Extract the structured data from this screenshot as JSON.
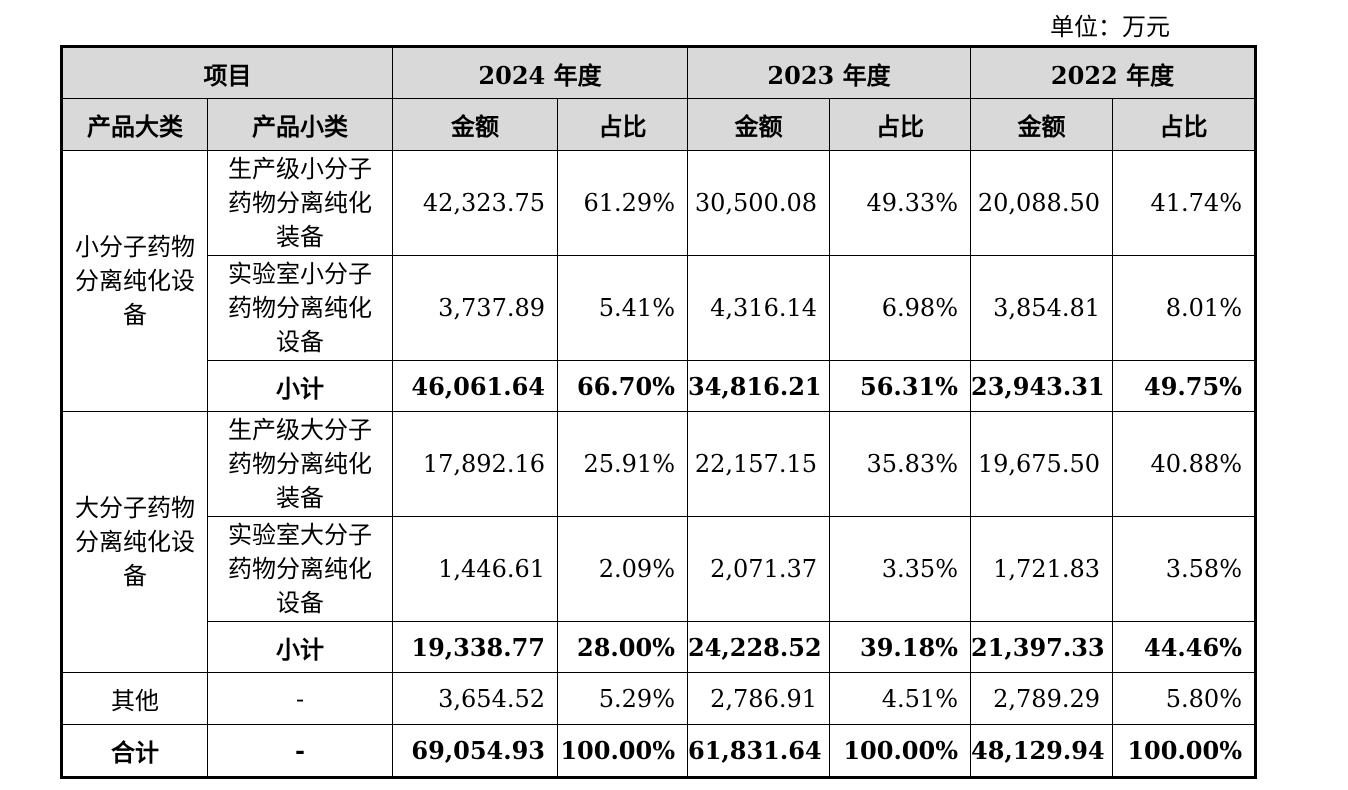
{
  "unit_label": "单位：万元",
  "header": {
    "item": "项目",
    "years": [
      "2024 年度",
      "2023 年度",
      "2022 年度"
    ],
    "major_category": "产品大类",
    "minor_category": "产品小类",
    "amount": "金额",
    "ratio": "占比"
  },
  "groups": [
    {
      "name": "小分子药物分离纯化设备",
      "rows": [
        {
          "sub": "生产级小分子药物分离纯化装备",
          "values": [
            "42,323.75",
            "61.29%",
            "30,500.08",
            "49.33%",
            "20,088.50",
            "41.74%"
          ]
        },
        {
          "sub": "实验室小分子药物分离纯化设备",
          "values": [
            "3,737.89",
            "5.41%",
            "4,316.14",
            "6.98%",
            "3,854.81",
            "8.01%"
          ]
        }
      ],
      "subtotal": {
        "label": "小计",
        "values": [
          "46,061.64",
          "66.70%",
          "34,816.21",
          "56.31%",
          "23,943.31",
          "49.75%"
        ]
      }
    },
    {
      "name": "大分子药物分离纯化设备",
      "rows": [
        {
          "sub": "生产级大分子药物分离纯化装备",
          "values": [
            "17,892.16",
            "25.91%",
            "22,157.15",
            "35.83%",
            "19,675.50",
            "40.88%"
          ]
        },
        {
          "sub": "实验室大分子药物分离纯化设备",
          "values": [
            "1,446.61",
            "2.09%",
            "2,071.37",
            "3.35%",
            "1,721.83",
            "3.58%"
          ]
        }
      ],
      "subtotal": {
        "label": "小计",
        "values": [
          "19,338.77",
          "28.00%",
          "24,228.52",
          "39.18%",
          "21,397.33",
          "44.46%"
        ]
      }
    }
  ],
  "other": {
    "label": "其他",
    "sub": "-",
    "values": [
      "3,654.52",
      "5.29%",
      "2,786.91",
      "4.51%",
      "2,789.29",
      "5.80%"
    ]
  },
  "total": {
    "label": "合计",
    "sub": "-",
    "values": [
      "69,054.93",
      "100.00%",
      "61,831.64",
      "100.00%",
      "48,129.94",
      "100.00%"
    ]
  }
}
